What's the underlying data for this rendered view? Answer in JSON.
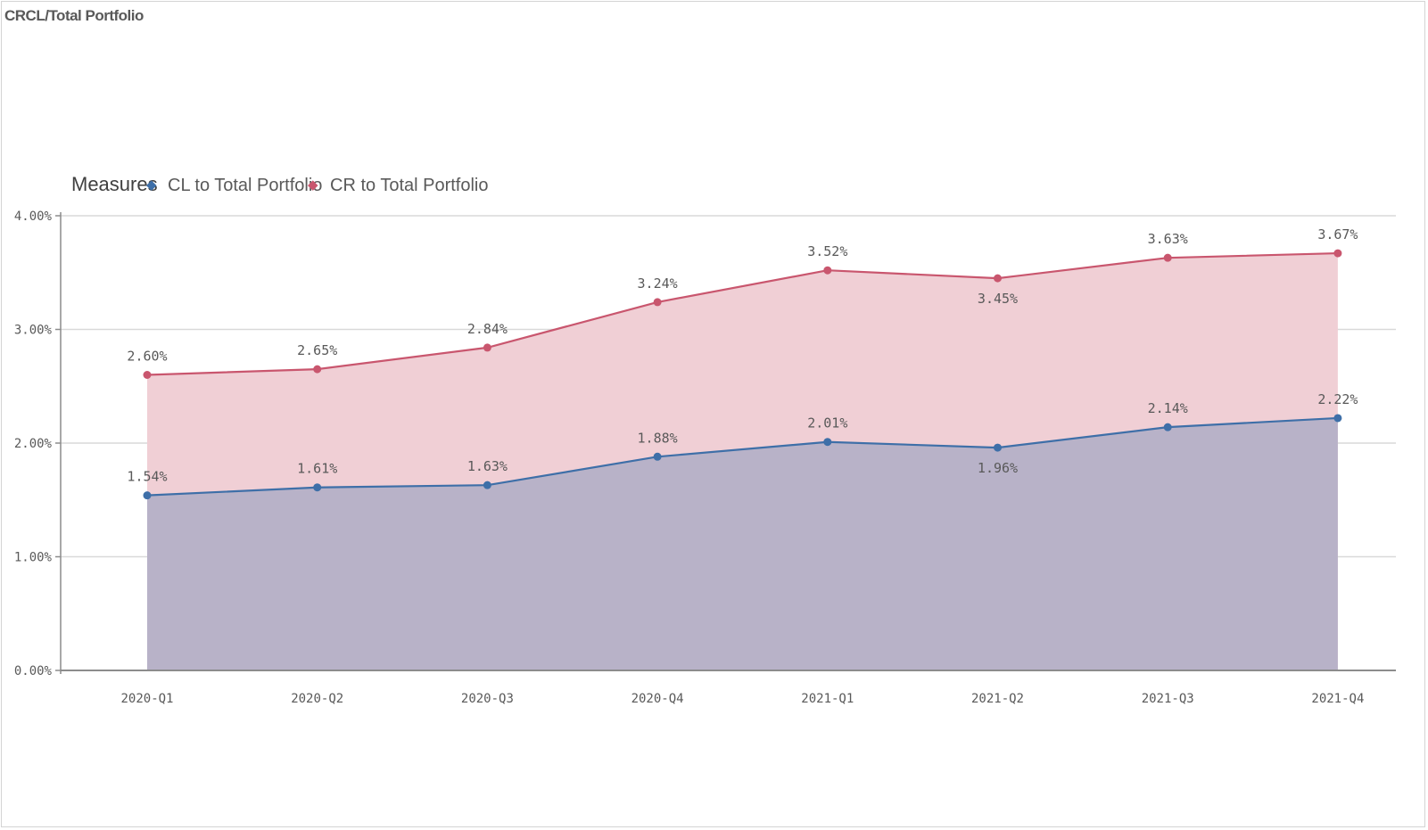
{
  "page": {
    "title": "CRCL/Total Portfolio"
  },
  "legend": {
    "title": "Measures",
    "items": [
      {
        "label": "CL to Total Portfolio",
        "color": "#3e6fa8"
      },
      {
        "label": "CR to Total Portfolio",
        "color": "#c9566e"
      }
    ]
  },
  "colors": {
    "cl_line": "#3e6fa8",
    "cr_line": "#c9566e",
    "cl_fill": "#b8b2c8",
    "cr_fill": "#f0cfd5",
    "grid": "#d9d9d9",
    "axis": "#8c8c8c"
  },
  "chart_data": {
    "type": "area",
    "title": "CRCL/Total Portfolio",
    "categories": [
      "2020-Q1",
      "2020-Q2",
      "2020-Q3",
      "2020-Q4",
      "2021-Q1",
      "2021-Q2",
      "2021-Q3",
      "2021-Q4"
    ],
    "series": [
      {
        "name": "CL to Total Portfolio",
        "values": [
          1.54,
          1.61,
          1.63,
          1.88,
          2.01,
          1.96,
          2.14,
          2.22
        ],
        "labels": [
          "1.54%",
          "1.61%",
          "1.63%",
          "1.88%",
          "2.01%",
          "1.96%",
          "2.14%",
          "2.22%"
        ],
        "label_position": [
          "above",
          "above",
          "above",
          "above",
          "above",
          "below",
          "above",
          "above"
        ]
      },
      {
        "name": "CR to Total Portfolio",
        "values": [
          2.6,
          2.65,
          2.84,
          3.24,
          3.52,
          3.45,
          3.63,
          3.67
        ],
        "labels": [
          "2.60%",
          "2.65%",
          "2.84%",
          "3.24%",
          "3.52%",
          "3.45%",
          "3.63%",
          "3.67%"
        ],
        "label_position": [
          "above",
          "above",
          "above",
          "above",
          "above",
          "below",
          "above",
          "above"
        ]
      }
    ],
    "y_ticks": [
      0,
      1,
      2,
      3,
      4
    ],
    "y_tick_labels": [
      "0.00%",
      "1.00%",
      "2.00%",
      "3.00%",
      "4.00%"
    ],
    "ylim": [
      0,
      4
    ],
    "grid": true,
    "legend_position": "top-left"
  }
}
